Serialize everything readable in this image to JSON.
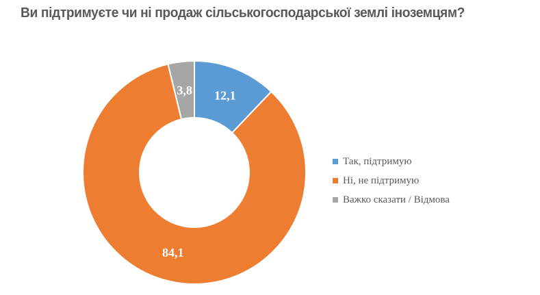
{
  "page": {
    "background": "#FFFFFF"
  },
  "chart_data": {
    "type": "pie",
    "subtype": "donut",
    "title": "Ви підтримуєте чи ні продаж сільськогосподарської землі іноземцям?",
    "title_color": "#57595B",
    "unit": "percent",
    "decimal_separator": ",",
    "direction": "clockwise",
    "start_angle_deg": 0,
    "donut_hole_ratio": 0.49,
    "slice_border_color": "#FFFFFF",
    "data_label_color": "#FFFFFF",
    "legend_position": "right",
    "legend_text_color": "#595959",
    "slices": [
      {
        "label": "Так, підтримую",
        "value": 12.1,
        "value_label": "12,1",
        "color": "#5B9BD5"
      },
      {
        "label": "Ні, не підтримую",
        "value": 84.1,
        "value_label": "84,1",
        "color": "#ED7D31"
      },
      {
        "label": "Важко сказати / Відмова",
        "value": 3.8,
        "value_label": "3,8",
        "color": "#A6A6A6"
      }
    ]
  }
}
